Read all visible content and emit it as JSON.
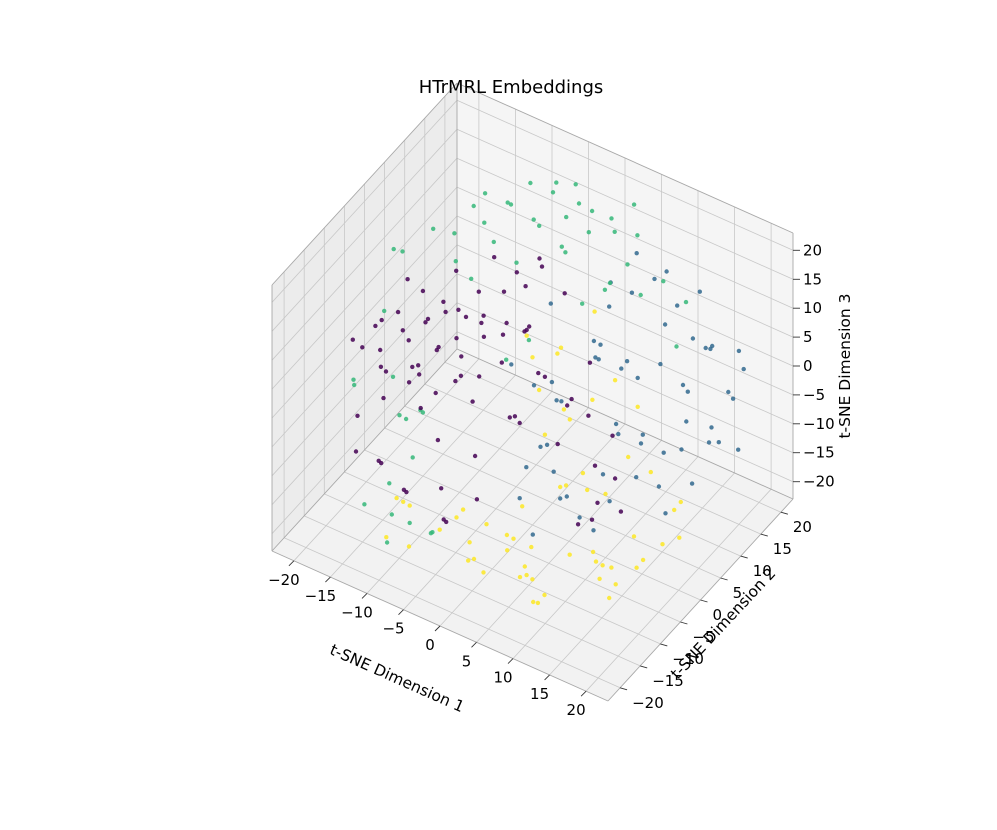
{
  "chart_data": {
    "type": "scatter",
    "projection": "3d",
    "title": "HTrMRL Embeddings",
    "xlabel": "t-SNE Dimension 1",
    "ylabel": "t-SNE Dimension 2",
    "zlabel": "t-SNE Dimension 3",
    "xlim": [
      -23,
      23
    ],
    "ylim": [
      -23,
      23
    ],
    "zlim": [
      -23,
      23
    ],
    "xticks": [
      -20,
      -15,
      -10,
      -5,
      0,
      5,
      10,
      15,
      20
    ],
    "yticks": [
      -20,
      -15,
      -10,
      -5,
      0,
      5,
      10,
      15,
      20
    ],
    "zticks": [
      -20,
      -15,
      -10,
      -5,
      0,
      5,
      10,
      15,
      20
    ],
    "grid": true,
    "legend": "none",
    "marker_size": 2.2,
    "colormap": "viridis",
    "series": [
      {
        "color": "#440154",
        "points": [
          [
            -18,
            -12,
            8
          ],
          [
            -16,
            -10,
            10
          ],
          [
            -14,
            -8,
            12
          ],
          [
            -15,
            -5,
            6
          ],
          [
            -12,
            -9,
            9
          ],
          [
            -11,
            -6,
            11
          ],
          [
            -13,
            -3,
            7
          ],
          [
            -10,
            -4,
            13
          ],
          [
            -9,
            -7,
            8
          ],
          [
            -8,
            -2,
            10
          ],
          [
            -17,
            -7,
            3
          ],
          [
            -14,
            -11,
            4
          ],
          [
            -12,
            -2,
            2
          ],
          [
            -10,
            -10,
            5
          ],
          [
            -7,
            -5,
            6
          ],
          [
            -6,
            -8,
            12
          ],
          [
            -5,
            -3,
            9
          ],
          [
            -4,
            -6,
            5
          ],
          [
            -3,
            -1,
            11
          ],
          [
            -2,
            -4,
            7
          ],
          [
            -16,
            -2,
            12
          ],
          [
            -15,
            0,
            9
          ],
          [
            -13,
            2,
            5
          ],
          [
            -11,
            1,
            14
          ],
          [
            -9,
            3,
            10
          ],
          [
            -7,
            0,
            8
          ],
          [
            -5,
            2,
            13
          ],
          [
            -3,
            4,
            6
          ],
          [
            -1,
            1,
            10
          ],
          [
            0,
            -2,
            12
          ],
          [
            -18,
            -5,
            -2
          ],
          [
            -16,
            -8,
            -4
          ],
          [
            -14,
            -3,
            -1
          ],
          [
            -12,
            -6,
            -5
          ],
          [
            -10,
            -1,
            -3
          ],
          [
            -8,
            -9,
            -6
          ],
          [
            -6,
            -4,
            -2
          ],
          [
            -4,
            -7,
            -8
          ],
          [
            -2,
            -2,
            -4
          ],
          [
            1,
            -5,
            -1
          ],
          [
            -19,
            -9,
            -8
          ],
          [
            -17,
            -13,
            -10
          ],
          [
            -15,
            -11,
            -12
          ],
          [
            -13,
            -14,
            -9
          ],
          [
            -11,
            -12,
            -14
          ],
          [
            -9,
            -15,
            -11
          ],
          [
            -7,
            -10,
            -13
          ],
          [
            -5,
            -13,
            -15
          ],
          [
            -3,
            -16,
            -12
          ],
          [
            -1,
            -12,
            -10
          ],
          [
            2,
            -8,
            3
          ],
          [
            3,
            -4,
            8
          ],
          [
            4,
            -1,
            -6
          ],
          [
            5,
            -6,
            10
          ],
          [
            6,
            3,
            -3
          ],
          [
            7,
            -3,
            5
          ],
          [
            8,
            1,
            -9
          ],
          [
            2,
            5,
            -5
          ],
          [
            4,
            7,
            2
          ],
          [
            6,
            9,
            -11
          ],
          [
            -8,
            5,
            15
          ],
          [
            -6,
            7,
            12
          ],
          [
            -4,
            9,
            14
          ],
          [
            -2,
            6,
            16
          ],
          [
            0,
            8,
            11
          ],
          [
            -10,
            6,
            3
          ],
          [
            -12,
            4,
            -7
          ],
          [
            -14,
            7,
            1
          ],
          [
            -9,
            9,
            -2
          ],
          [
            -7,
            11,
            6
          ],
          [
            9,
            -5,
            -14
          ],
          [
            10,
            -2,
            -12
          ],
          [
            11,
            2,
            -16
          ],
          [
            12,
            -7,
            -10
          ],
          [
            8,
            6,
            -15
          ],
          [
            -17,
            1,
            -6
          ],
          [
            -19,
            -3,
            4
          ],
          [
            -20,
            -6,
            1
          ],
          [
            -18,
            2,
            -10
          ],
          [
            -16,
            5,
            -13
          ]
        ]
      },
      {
        "color": "#31688e",
        "points": [
          [
            10,
            8,
            2
          ],
          [
            12,
            10,
            4
          ],
          [
            14,
            12,
            0
          ],
          [
            16,
            14,
            6
          ],
          [
            18,
            16,
            -2
          ],
          [
            11,
            13,
            8
          ],
          [
            13,
            15,
            -4
          ],
          [
            15,
            17,
            3
          ],
          [
            17,
            19,
            -6
          ],
          [
            19,
            18,
            1
          ],
          [
            9,
            5,
            -6
          ],
          [
            11,
            7,
            -8
          ],
          [
            13,
            9,
            -10
          ],
          [
            15,
            11,
            -5
          ],
          [
            17,
            13,
            -9
          ],
          [
            8,
            3,
            -12
          ],
          [
            10,
            1,
            -14
          ],
          [
            12,
            4,
            -11
          ],
          [
            14,
            6,
            -13
          ],
          [
            16,
            8,
            -7
          ],
          [
            5,
            10,
            10
          ],
          [
            7,
            12,
            12
          ],
          [
            9,
            14,
            14
          ],
          [
            11,
            16,
            9
          ],
          [
            13,
            18,
            11
          ],
          [
            4,
            8,
            5
          ],
          [
            6,
            6,
            7
          ],
          [
            8,
            9,
            3
          ],
          [
            3,
            11,
            -1
          ],
          [
            5,
            13,
            -3
          ],
          [
            2,
            0,
            -8
          ],
          [
            4,
            -2,
            -10
          ],
          [
            6,
            -4,
            -12
          ],
          [
            8,
            -6,
            -9
          ],
          [
            10,
            -3,
            -16
          ],
          [
            0,
            2,
            -11
          ],
          [
            1,
            -5,
            -14
          ],
          [
            3,
            -7,
            -6
          ],
          [
            5,
            -9,
            -15
          ],
          [
            7,
            -1,
            -17
          ],
          [
            18,
            12,
            9
          ],
          [
            20,
            15,
            7
          ],
          [
            19,
            10,
            -3
          ],
          [
            21,
            13,
            -8
          ],
          [
            17,
            9,
            12
          ],
          [
            14,
            2,
            -1
          ],
          [
            12,
            -1,
            2
          ],
          [
            16,
            4,
            -15
          ],
          [
            18,
            7,
            -11
          ],
          [
            20,
            10,
            -5
          ],
          [
            -2,
            4,
            -3
          ],
          [
            0,
            6,
            -6
          ],
          [
            -4,
            2,
            1
          ],
          [
            -1,
            9,
            -9
          ],
          [
            2,
            12,
            -2
          ],
          [
            6,
            15,
            16
          ],
          [
            9,
            17,
            13
          ],
          [
            3,
            14,
            10
          ],
          [
            -3,
            10,
            6
          ],
          [
            1,
            3,
            0
          ]
        ]
      },
      {
        "color": "#35b779",
        "points": [
          [
            -12,
            10,
            20
          ],
          [
            -10,
            12,
            18
          ],
          [
            -8,
            14,
            21
          ],
          [
            -6,
            16,
            19
          ],
          [
            -4,
            18,
            20
          ],
          [
            -11,
            8,
            17
          ],
          [
            -9,
            11,
            19
          ],
          [
            -7,
            13,
            16
          ],
          [
            -5,
            15,
            22
          ],
          [
            -3,
            17,
            18
          ],
          [
            -2,
            12,
            20
          ],
          [
            0,
            14,
            17
          ],
          [
            2,
            16,
            19
          ],
          [
            4,
            18,
            21
          ],
          [
            -14,
            6,
            15
          ],
          [
            -13,
            9,
            18
          ],
          [
            -1,
            10,
            16
          ],
          [
            1,
            13,
            22
          ],
          [
            3,
            15,
            18
          ],
          [
            5,
            17,
            17
          ],
          [
            -16,
            -4,
            -10
          ],
          [
            -14,
            -6,
            -8
          ],
          [
            -12,
            -8,
            -12
          ],
          [
            -18,
            -2,
            -6
          ],
          [
            -20,
            -8,
            -4
          ],
          [
            -15,
            0,
            -12
          ],
          [
            -17,
            3,
            -15
          ],
          [
            -19,
            -10,
            -1
          ],
          [
            -13,
            -12,
            -14
          ],
          [
            -11,
            -15,
            -16
          ],
          [
            -20,
            4,
            10
          ],
          [
            -18,
            8,
            12
          ],
          [
            -16,
            10,
            6
          ],
          [
            -19,
            0,
            14
          ],
          [
            -17,
            -6,
            9
          ],
          [
            -15,
            12,
            2
          ],
          [
            -13,
            14,
            8
          ],
          [
            -11,
            16,
            4
          ],
          [
            -9,
            18,
            10
          ],
          [
            -7,
            20,
            6
          ],
          [
            6,
            16,
            8
          ],
          [
            8,
            18,
            10
          ],
          [
            10,
            20,
            6
          ],
          [
            12,
            14,
            4
          ],
          [
            4,
            12,
            12
          ],
          [
            2,
            20,
            8
          ],
          [
            0,
            18,
            4
          ],
          [
            -2,
            16,
            2
          ],
          [
            -6,
            10,
            -2
          ],
          [
            -8,
            8,
            -5
          ],
          [
            -10,
            -18,
            -18
          ],
          [
            -8,
            -16,
            -15
          ],
          [
            -6,
            -14,
            -17
          ],
          [
            -4,
            -18,
            -13
          ],
          [
            -12,
            -20,
            -11
          ]
        ]
      },
      {
        "color": "#fde725",
        "points": [
          [
            2,
            -10,
            -16
          ],
          [
            4,
            -12,
            -14
          ],
          [
            6,
            -14,
            -18
          ],
          [
            8,
            -16,
            -15
          ],
          [
            10,
            -18,
            -17
          ],
          [
            3,
            -8,
            -12
          ],
          [
            5,
            -11,
            -19
          ],
          [
            7,
            -13,
            -13
          ],
          [
            9,
            -15,
            -20
          ],
          [
            11,
            -17,
            -16
          ],
          [
            12,
            -6,
            -18
          ],
          [
            14,
            -8,
            -16
          ],
          [
            16,
            -10,
            -19
          ],
          [
            18,
            -12,
            -14
          ],
          [
            13,
            -4,
            -20
          ],
          [
            15,
            -2,
            -15
          ],
          [
            17,
            -5,
            -17
          ],
          [
            19,
            -7,
            -13
          ],
          [
            1,
            -14,
            -20
          ],
          [
            0,
            -16,
            -17
          ],
          [
            -2,
            -12,
            -18
          ],
          [
            -4,
            -10,
            -15
          ],
          [
            -6,
            -8,
            -19
          ],
          [
            -3,
            -6,
            -20
          ],
          [
            -5,
            -14,
            -16
          ],
          [
            6,
            -4,
            -10
          ],
          [
            8,
            -2,
            -8
          ],
          [
            10,
            0,
            -12
          ],
          [
            12,
            2,
            -6
          ],
          [
            14,
            4,
            -9
          ],
          [
            4,
            2,
            -4
          ],
          [
            6,
            4,
            -1
          ],
          [
            8,
            6,
            2
          ],
          [
            10,
            8,
            -3
          ],
          [
            2,
            -2,
            3
          ],
          [
            0,
            0,
            6
          ],
          [
            5,
            -6,
            0
          ],
          [
            9,
            -8,
            -5
          ],
          [
            13,
            -10,
            -2
          ],
          [
            16,
            -14,
            -8
          ],
          [
            -8,
            -16,
            -12
          ],
          [
            -10,
            -14,
            -14
          ],
          [
            -12,
            -12,
            -16
          ],
          [
            -7,
            -18,
            -17
          ],
          [
            -9,
            -20,
            -15
          ],
          [
            3,
            -20,
            -12
          ],
          [
            7,
            -19,
            -9
          ],
          [
            11,
            -20,
            -11
          ],
          [
            15,
            -18,
            -6
          ],
          [
            18,
            -16,
            -10
          ],
          [
            20,
            -4,
            -12
          ],
          [
            19,
            2,
            -16
          ],
          [
            17,
            6,
            -14
          ],
          [
            15,
            8,
            -18
          ],
          [
            1,
            6,
            -7
          ],
          [
            -1,
            8,
            0
          ],
          [
            -3,
            4,
            5
          ],
          [
            3,
            10,
            8
          ],
          [
            5,
            -2,
            12
          ]
        ]
      }
    ]
  }
}
